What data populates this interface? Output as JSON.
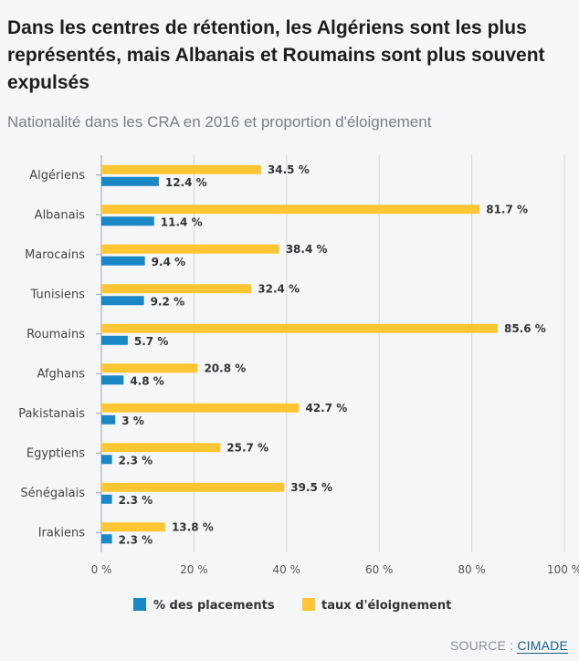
{
  "header": {
    "title": "Dans les centres de rétention, les Algériens sont les plus représentés, mais Albanais et Roumains sont plus souvent expulsés",
    "subtitle": "Nationalité dans les CRA en 2016 et proportion d'éloignement"
  },
  "footer": {
    "source_label": "SOURCE : ",
    "source_org": "CIMADE"
  },
  "colors": {
    "placements": "#1a87c6",
    "eloignement": "#fdc632",
    "grid": "#d3d8de"
  },
  "chart_data": {
    "type": "bar",
    "orientation": "horizontal",
    "categories": [
      "Algériens",
      "Albanais",
      "Marocains",
      "Tunisiens",
      "Roumains",
      "Afghans",
      "Pakistanais",
      "Egyptiens",
      "Sénégalais",
      "Irakiens"
    ],
    "series": [
      {
        "name": "taux d'éloignement",
        "values": [
          34.5,
          81.7,
          38.4,
          32.4,
          85.6,
          20.8,
          42.7,
          25.7,
          39.5,
          13.8
        ]
      },
      {
        "name": "% des placements",
        "values": [
          12.4,
          11.4,
          9.4,
          9.2,
          5.7,
          4.8,
          3,
          2.3,
          2.3,
          2.3
        ]
      }
    ],
    "value_suffix": " %",
    "xlim": [
      0,
      100
    ],
    "xticks": [
      "0 %",
      "20 %",
      "40 %",
      "60 %",
      "80 %",
      "100 %"
    ],
    "grid": true,
    "legend": [
      "% des placements",
      "taux d'éloignement"
    ],
    "legend_position": "bottom"
  }
}
